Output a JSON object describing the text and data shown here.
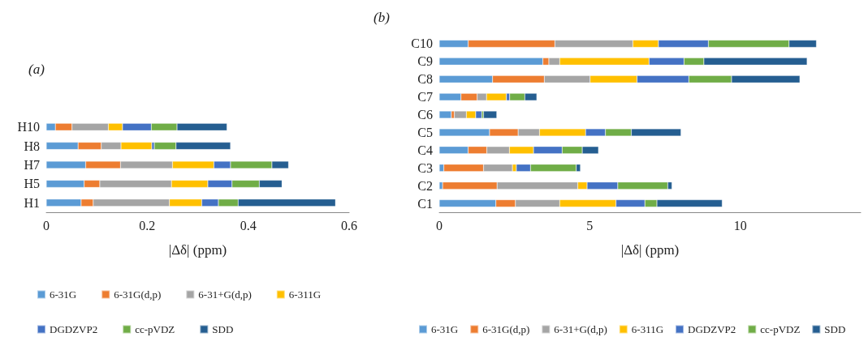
{
  "chart_data": [
    {
      "type": "bar",
      "title": "(a)",
      "orientation": "horizontal",
      "stacked": true,
      "grid": false,
      "legend": "bottom",
      "xlabel": "|Δδ| (ppm)",
      "xlim": [
        0,
        0.6
      ],
      "xticks": [
        0,
        0.2,
        0.4,
        0.6
      ],
      "categories": [
        "H10",
        "H8",
        "H7",
        "H5",
        "H1"
      ],
      "series": [
        {
          "name": "6-31G",
          "color": "#5b9bd5",
          "values": [
            0.018,
            0.063,
            0.078,
            0.075,
            0.069
          ]
        },
        {
          "name": "6-31G(d,p)",
          "color": "#ed7d31",
          "values": [
            0.033,
            0.046,
            0.069,
            0.031,
            0.024
          ]
        },
        {
          "name": "6-31+G(d,p)",
          "color": "#a5a5a5",
          "values": [
            0.072,
            0.039,
            0.103,
            0.142,
            0.151
          ]
        },
        {
          "name": "6-311G",
          "color": "#ffc000",
          "values": [
            0.028,
            0.061,
            0.082,
            0.072,
            0.064
          ]
        },
        {
          "name": "DGDZVP2",
          "color": "#4472c4",
          "values": [
            0.057,
            0.005,
            0.033,
            0.048,
            0.033
          ]
        },
        {
          "name": "cc-pVDZ",
          "color": "#70ad47",
          "values": [
            0.051,
            0.043,
            0.082,
            0.054,
            0.039
          ]
        },
        {
          "name": "SDD",
          "color": "#255e91",
          "values": [
            0.099,
            0.108,
            0.033,
            0.045,
            0.193
          ]
        }
      ]
    },
    {
      "type": "bar",
      "title": "(b)",
      "orientation": "horizontal",
      "stacked": true,
      "grid": false,
      "legend": "bottom",
      "xlabel": "|Δδ| (ppm)",
      "xlim": [
        0,
        14
      ],
      "xticks": [
        0,
        5,
        10
      ],
      "categories": [
        "C10",
        "C9",
        "C8",
        "C7",
        "C6",
        "C5",
        "C4",
        "C3",
        "C2",
        "C1"
      ],
      "series": [
        {
          "name": "6-31G",
          "color": "#5b9bd5",
          "values": [
            0.96,
            3.44,
            1.77,
            0.72,
            0.4,
            1.67,
            0.96,
            0.15,
            0.11,
            1.88
          ]
        },
        {
          "name": "6-31G(d,p)",
          "color": "#ed7d31",
          "values": [
            2.88,
            0.2,
            1.72,
            0.54,
            0.1,
            0.95,
            0.62,
            1.32,
            1.81,
            0.65
          ]
        },
        {
          "name": "6-31+G(d,p)",
          "color": "#a5a5a5",
          "values": [
            2.59,
            0.36,
            1.52,
            0.31,
            0.4,
            0.71,
            0.75,
            0.96,
            2.68,
            1.47
          ]
        },
        {
          "name": "6-311G",
          "color": "#ffc000",
          "values": [
            0.85,
            2.97,
            1.56,
            0.66,
            0.31,
            1.53,
            0.8,
            0.13,
            0.31,
            1.87
          ]
        },
        {
          "name": "DGDZVP2",
          "color": "#4472c4",
          "values": [
            1.66,
            1.16,
            1.72,
            0.11,
            0.2,
            0.66,
            0.95,
            0.47,
            1.02,
            0.96
          ]
        },
        {
          "name": "cc-pVDZ",
          "color": "#70ad47",
          "values": [
            2.68,
            0.66,
            1.42,
            0.5,
            0.06,
            0.86,
            0.67,
            1.52,
            1.66,
            0.4
          ]
        },
        {
          "name": "SDD",
          "color": "#255e91",
          "values": [
            0.91,
            3.43,
            2.27,
            0.4,
            0.44,
            1.65,
            0.54,
            0.14,
            0.14,
            2.17
          ]
        }
      ]
    }
  ]
}
